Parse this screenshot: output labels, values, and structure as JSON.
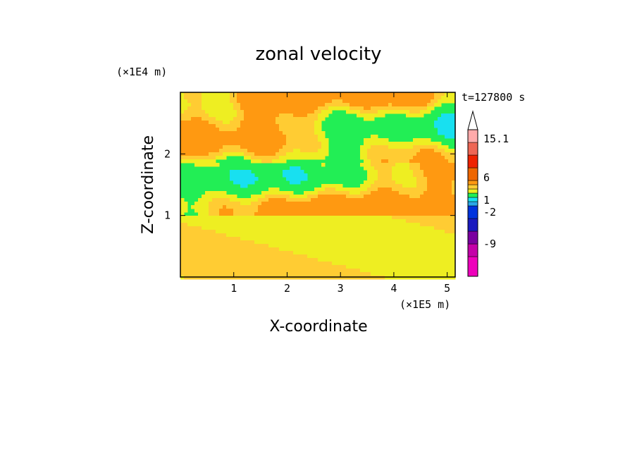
{
  "chart_data": {
    "type": "heatmap",
    "title": "zonal velocity",
    "xlabel": "X-coordinate",
    "ylabel": "Z-coordinate",
    "x_unit": "(×1E5 m)",
    "y_unit": "(×1E4 m)",
    "time_label": "t=127800 s",
    "x_ticks": [
      1,
      2,
      3,
      4,
      5
    ],
    "y_ticks": [
      1,
      2
    ],
    "xlim": [
      0,
      5.15
    ],
    "ylim": [
      0,
      3.0
    ],
    "colorbar": {
      "colors": [
        "#ee00bb",
        "#c400a8",
        "#7a00a0",
        "#1a1abf",
        "#0033dd",
        "#2aa8e8",
        "#18e0f0",
        "#22ee55",
        "#eeee22",
        "#ffcc33",
        "#ff9911",
        "#ee6600",
        "#ee2200",
        "#ee6655",
        "#ffaaaa"
      ],
      "labels": [
        "15.1",
        "6",
        "1",
        "-2",
        "-9"
      ],
      "extend_top": true
    },
    "field_levels": [
      -9,
      -2,
      0,
      1,
      2,
      6
    ],
    "field_colors": [
      "#0033dd",
      "#18e0f0",
      "#22ee55",
      "#eeee22",
      "#ffcc33",
      "#ff9911",
      "#ee6600"
    ]
  }
}
